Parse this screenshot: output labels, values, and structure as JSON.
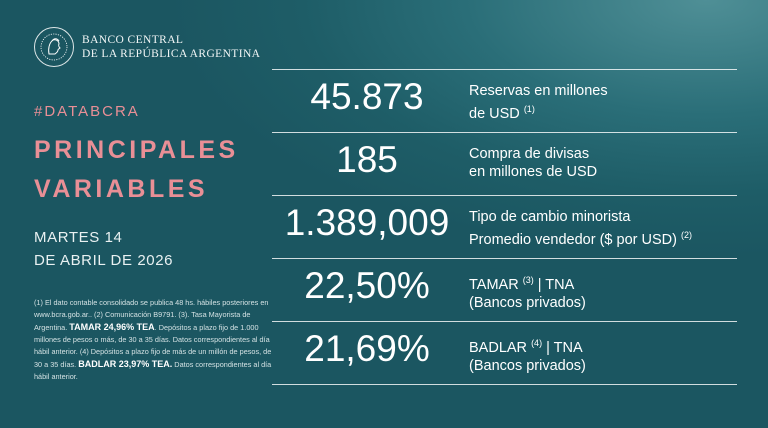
{
  "header": {
    "logo_line1": "BANCO CENTRAL",
    "logo_line2": "DE LA REPÚBLICA ARGENTINA",
    "logo_icon": "bcra-seal-icon"
  },
  "hashtag": "#DATABCRA",
  "title_line1": "PRINCIPALES",
  "title_line2": "VARIABLES",
  "date_line1": "MARTES 14",
  "date_line2": "DE ABRIL DE 2026",
  "footnote": {
    "p1": "(1) El dato contable consolidado se publica 48 hs. hábiles posteriores en www.bcra.gob.ar.. (2) Comunicación B9791. (3). Tasa Mayorista de Argentina.",
    "tamar_bold": "TAMAR 24,96% TEA",
    "p2": ". Depósitos a plazo fijo de 1.000 millones de pesos o más, de 30 a 35 días. Datos correspondientes al día hábil anterior. (4) Depósitos a plazo fijo de más de un millón de pesos, de 30 a 35 días.",
    "badlar_bold": "BADLAR 23,97% TEA.",
    "p3": " Datos correspondientes al día hábil anterior."
  },
  "variables": [
    {
      "value": "45.873",
      "label_l1": "Reservas en millones",
      "label_l2": "de USD",
      "note_l2": "(1)"
    },
    {
      "value": "185",
      "label_l1": "Compra de divisas",
      "label_l2": "en millones de USD"
    },
    {
      "value": "1.389,009",
      "label_l1": "Tipo de cambio minorista",
      "label_l2": "Promedio vendedor ($ por USD)",
      "note_l2": "(2)"
    },
    {
      "value": "22,50%",
      "label_l1": "TAMAR",
      "note_l1": "(3)",
      "label_l1_suffix": "| TNA",
      "label_l2": "(Bancos privados)"
    },
    {
      "value": "21,69%",
      "label_l1": "BADLAR",
      "note_l1": "(4)",
      "label_l1_suffix": "| TNA",
      "label_l2": "(Bancos privados)"
    }
  ]
}
